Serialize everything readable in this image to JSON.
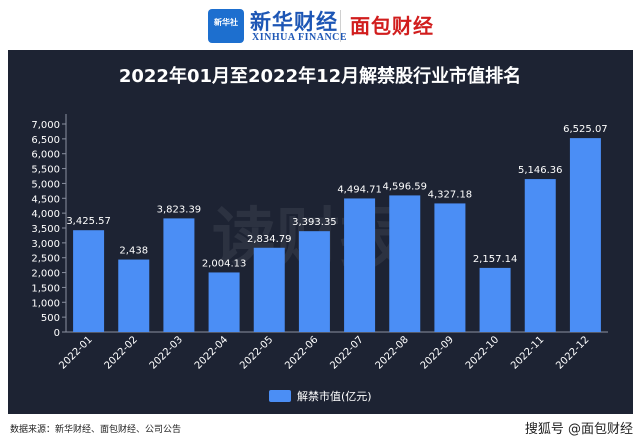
{
  "header": {
    "logo_xinhua_box": "新华社",
    "logo_xinhua_cn": "新华财经",
    "logo_xinhua_en": "XINHUA FINANCE",
    "logo_mianbao": "面包财经"
  },
  "chart_data": {
    "type": "bar",
    "title": "2022年01月至2022年12月解禁股行业市值排名",
    "categories": [
      "2022-01",
      "2022-02",
      "2022-03",
      "2022-04",
      "2022-05",
      "2022-06",
      "2022-07",
      "2022-08",
      "2022-09",
      "2022-10",
      "2022-11",
      "2022-12"
    ],
    "series": [
      {
        "name": "解禁市值(亿元)",
        "values": [
          3425.57,
          2438,
          3823.39,
          2004.13,
          2834.79,
          3393.35,
          4494.71,
          4596.59,
          4327.18,
          2157.14,
          5146.36,
          6525.07
        ],
        "labels": [
          "3,425.57",
          "2,438",
          "3,823.39",
          "2,004.13",
          "2,834.79",
          "3,393.35",
          "4,494.71",
          "4,596.59",
          "4,327.18",
          "2,157.14",
          "5,146.36",
          "6,525.07"
        ]
      }
    ],
    "ylim": [
      0,
      7000
    ],
    "yticks": [
      "0",
      "500",
      "1,000",
      "1,500",
      "2,000",
      "2,500",
      "3,000",
      "3,500",
      "4,000",
      "4,500",
      "5,000",
      "5,500",
      "6,000",
      "6,500",
      "7,000"
    ],
    "xlabel": "",
    "ylabel": "",
    "legend": "bottom-center",
    "grid": false,
    "colors": {
      "bar": "#4b8ef5",
      "background": "#1d2333",
      "text": "#ffffff"
    }
  },
  "watermark_center": "读财报",
  "source": "数据来源：新华财经、面包财经、公司公告",
  "watermark": "搜狐号 @面包财经"
}
